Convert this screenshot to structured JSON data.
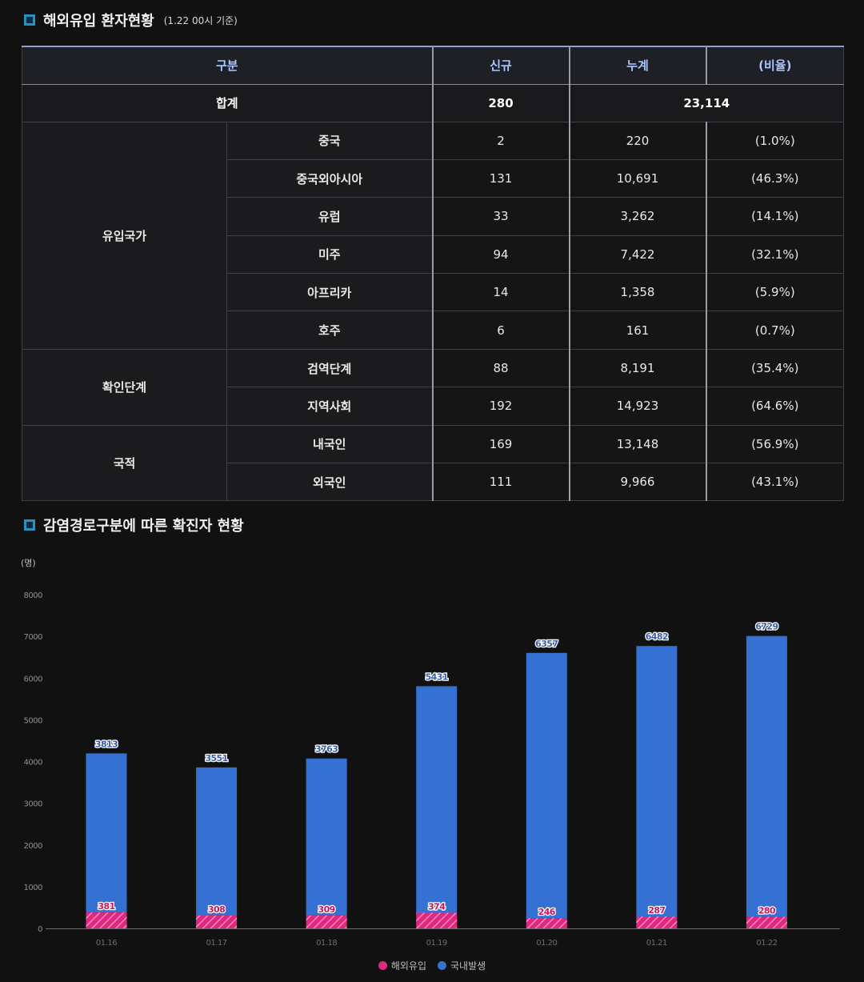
{
  "section1": {
    "title": "해외유입 환자현황",
    "subtitle": "(1.22 00시 기준)"
  },
  "table": {
    "headers": [
      "구분",
      "신규",
      "누계",
      "(비율)"
    ],
    "total": {
      "label": "합계",
      "new": "280",
      "cumulative": "23,114"
    },
    "groups": [
      {
        "name": "유입국가",
        "rows": [
          {
            "label": "중국",
            "new": "2",
            "cumulative": "220",
            "ratio": "(1.0%)"
          },
          {
            "label": "중국외아시아",
            "new": "131",
            "cumulative": "10,691",
            "ratio": "(46.3%)"
          },
          {
            "label": "유럽",
            "new": "33",
            "cumulative": "3,262",
            "ratio": "(14.1%)"
          },
          {
            "label": "미주",
            "new": "94",
            "cumulative": "7,422",
            "ratio": "(32.1%)"
          },
          {
            "label": "아프리카",
            "new": "14",
            "cumulative": "1,358",
            "ratio": "(5.9%)"
          },
          {
            "label": "호주",
            "new": "6",
            "cumulative": "161",
            "ratio": "(0.7%)"
          }
        ]
      },
      {
        "name": "확인단계",
        "rows": [
          {
            "label": "검역단계",
            "new": "88",
            "cumulative": "8,191",
            "ratio": "(35.4%)"
          },
          {
            "label": "지역사회",
            "new": "192",
            "cumulative": "14,923",
            "ratio": "(64.6%)"
          }
        ]
      },
      {
        "name": "국적",
        "rows": [
          {
            "label": "내국인",
            "new": "169",
            "cumulative": "13,148",
            "ratio": "(56.9%)"
          },
          {
            "label": "외국인",
            "new": "111",
            "cumulative": "9,966",
            "ratio": "(43.1%)"
          }
        ]
      }
    ]
  },
  "section2": {
    "title": "감염경로구분에 따른 확진자 현황"
  },
  "chart_data": {
    "type": "bar",
    "stacked": true,
    "title": "감염경로구분에 따른 확진자 현황",
    "ylabel": "(명)",
    "ylim": [
      0,
      8000
    ],
    "yticks": [
      0,
      1000,
      2000,
      3000,
      4000,
      5000,
      6000,
      7000,
      8000
    ],
    "categories": [
      "01.16",
      "01.17",
      "01.18",
      "01.19",
      "01.20",
      "01.21",
      "01.22"
    ],
    "series": [
      {
        "name": "해외유입",
        "values": [
          381,
          308,
          309,
          374,
          246,
          287,
          280
        ],
        "color": "#e0287f"
      },
      {
        "name": "국내발생",
        "values": [
          3813,
          3551,
          3763,
          5431,
          6357,
          6482,
          6729
        ],
        "color": "#3571d2"
      }
    ],
    "legend": "bottom-center",
    "grid": false
  },
  "colors": {
    "accent": "#2a8fc2",
    "header_text": "#a9c6ff"
  },
  "icons": {
    "title_marker": "square-bullet-icon"
  }
}
